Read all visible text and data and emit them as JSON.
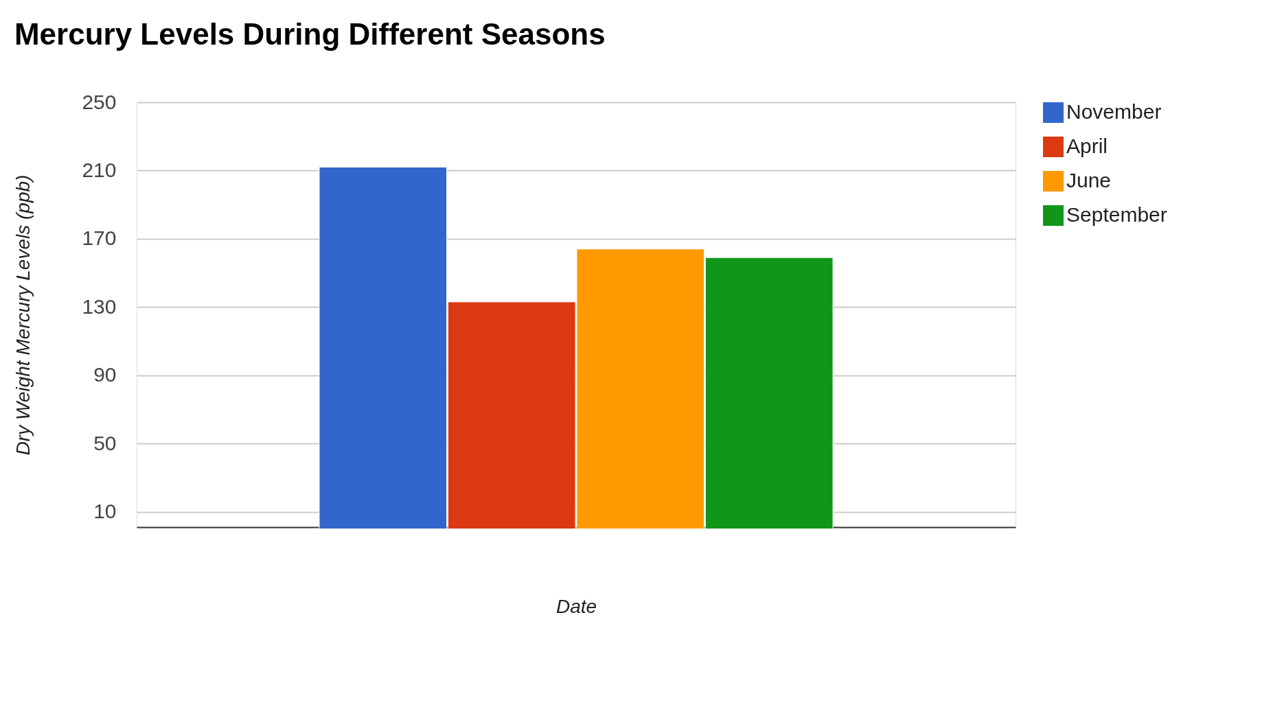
{
  "chart_data": {
    "type": "bar",
    "title": "Mercury Levels During Different Seasons",
    "xlabel": "Date",
    "ylabel": "Dry Weight Mercury Levels (ppb)",
    "categories": [
      null
    ],
    "series": [
      {
        "name": "November",
        "color": "#3366cc",
        "values": [
          212
        ]
      },
      {
        "name": "April",
        "color": "#dc3912",
        "values": [
          133
        ]
      },
      {
        "name": "June",
        "color": "#ff9900",
        "values": [
          164
        ]
      },
      {
        "name": "September",
        "color": "#109618",
        "values": [
          159
        ]
      }
    ],
    "ylim": [
      1,
      250
    ],
    "yticks": [
      10,
      50,
      90,
      130,
      170,
      210,
      250
    ],
    "grid": "y",
    "legend": "top right"
  }
}
